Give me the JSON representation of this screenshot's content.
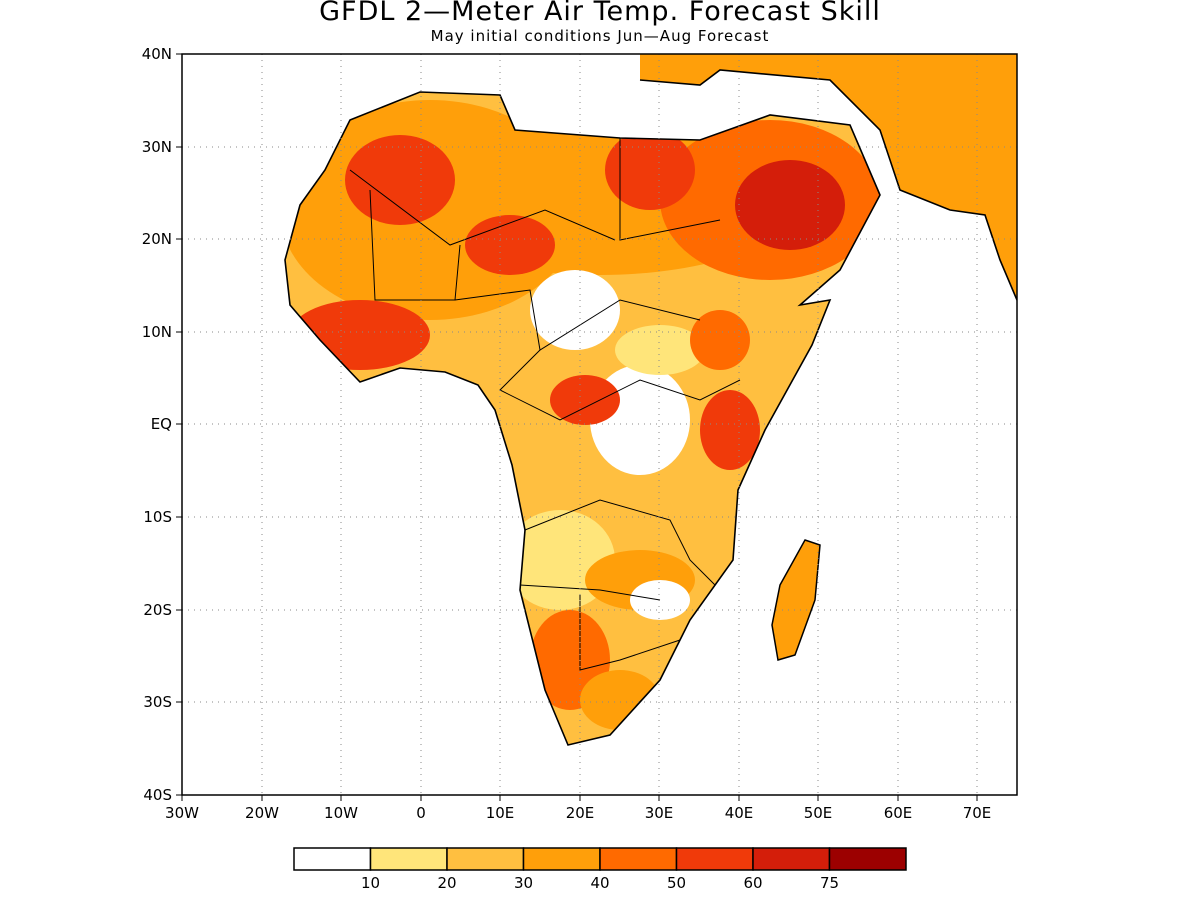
{
  "title": "GFDL 2—Meter Air Temp. Forecast Skill",
  "subtitle": "May initial conditions  Jun—Aug Forecast",
  "axes": {
    "lat_labels": [
      "40N",
      "30N",
      "20N",
      "10N",
      "EQ",
      "10S",
      "20S",
      "30S",
      "40S"
    ],
    "lon_labels": [
      "30W",
      "20W",
      "10W",
      "0",
      "10E",
      "20E",
      "30E",
      "40E",
      "50E",
      "60E",
      "70E"
    ],
    "lat_range": [
      -40,
      40
    ],
    "lon_range": [
      -30,
      75
    ],
    "grid": "dotted"
  },
  "colorbar": {
    "colors": [
      "#ffffff",
      "#ffe57a",
      "#ffbf40",
      "#ff9f0a",
      "#ff6a00",
      "#f03a0a",
      "#d41e0a",
      "#9c0000"
    ],
    "labels": [
      "10",
      "20",
      "30",
      "40",
      "50",
      "60",
      "75"
    ]
  },
  "legend_swatches": [
    "skill-below-10",
    "skill-10-20",
    "skill-20-30",
    "skill-30-40",
    "skill-40-50",
    "skill-50-60",
    "skill-60-75",
    "skill-above-75"
  ]
}
